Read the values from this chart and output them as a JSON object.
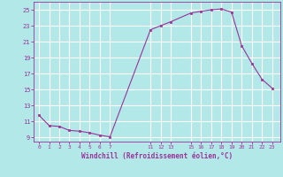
{
  "x": [
    0,
    1,
    2,
    3,
    4,
    5,
    6,
    7,
    11,
    12,
    13,
    15,
    16,
    17,
    18,
    19,
    20,
    21,
    22,
    23
  ],
  "y": [
    11.8,
    10.5,
    10.4,
    9.9,
    9.8,
    9.6,
    9.3,
    9.1,
    22.5,
    23.0,
    23.5,
    24.6,
    24.8,
    25.0,
    25.1,
    24.7,
    20.5,
    18.3,
    16.3,
    15.2
  ],
  "line_color": "#993399",
  "marker": "s",
  "marker_size": 2,
  "bg_color": "#b3e8e8",
  "grid_color": "#ffffff",
  "xlabel": "Windchill (Refroidissement éolien,°C)",
  "xlabel_color": "#993399",
  "tick_color": "#993399",
  "ylim": [
    8.5,
    26
  ],
  "yticks": [
    9,
    11,
    13,
    15,
    17,
    19,
    21,
    23,
    25
  ],
  "xticks": [
    0,
    1,
    2,
    3,
    4,
    5,
    6,
    7,
    11,
    12,
    13,
    15,
    16,
    17,
    18,
    19,
    20,
    21,
    22,
    23
  ],
  "xlim": [
    -0.5,
    23.8
  ]
}
